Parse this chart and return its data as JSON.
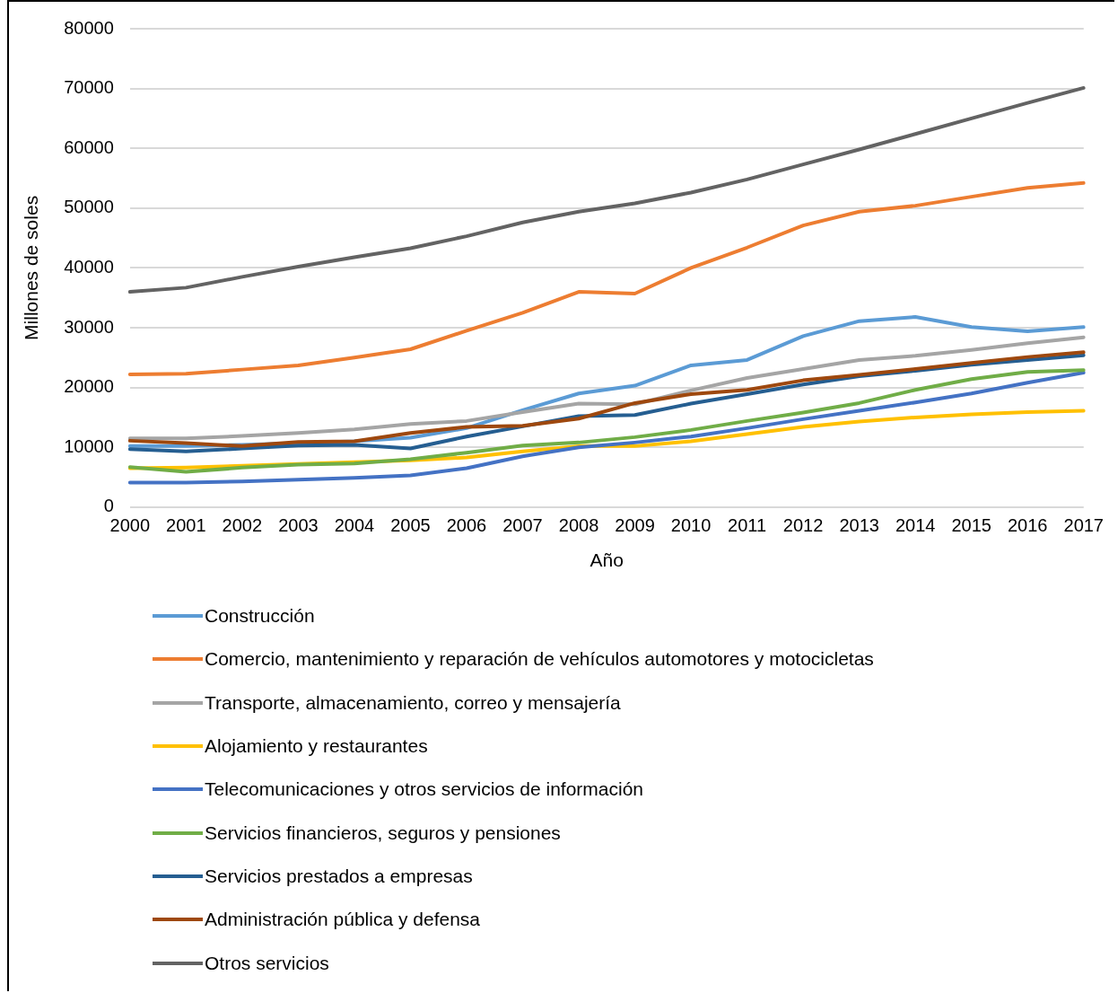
{
  "chart_data": {
    "type": "line",
    "xlabel": "Año",
    "ylabel": "Millones de soles",
    "categories": [
      "2000",
      "2001",
      "2002",
      "2003",
      "2004",
      "2005",
      "2006",
      "2007",
      "2008",
      "2009",
      "2010",
      "2011",
      "2012",
      "2013",
      "2014",
      "2015",
      "2016",
      "2017"
    ],
    "ylim": [
      0,
      80000
    ],
    "yticks": [
      0,
      10000,
      20000,
      30000,
      40000,
      50000,
      60000,
      70000,
      80000
    ],
    "grid": "y",
    "legend": "bottom",
    "marker": "none",
    "line_style": "solid",
    "series": [
      {
        "name": "Construcción",
        "color": "#5b9bd5",
        "values": [
          10200,
          10200,
          10400,
          10700,
          11000,
          11600,
          13200,
          16200,
          19000,
          20300,
          23700,
          24600,
          28600,
          31100,
          31800,
          30100,
          29400,
          30100
        ]
      },
      {
        "name": "Comercio, mantenimiento y reparación de vehículos automotores y motocicletas",
        "color": "#ed7d31",
        "values": [
          22200,
          22300,
          23000,
          23700,
          25000,
          26400,
          29500,
          32500,
          36000,
          35700,
          40000,
          43400,
          47100,
          49400,
          50400,
          51900,
          53400,
          54200
        ]
      },
      {
        "name": "Transporte, almacenamiento, correo y mensajería",
        "color": "#a5a5a5",
        "values": [
          11500,
          11500,
          11900,
          12400,
          13000,
          13900,
          14400,
          15900,
          17300,
          17200,
          19500,
          21600,
          23100,
          24600,
          25300,
          26300,
          27400,
          28400
        ]
      },
      {
        "name": "Alojamiento y restaurantes",
        "color": "#ffc000",
        "values": [
          6500,
          6600,
          6900,
          7200,
          7500,
          7800,
          8300,
          9300,
          10200,
          10200,
          11000,
          12200,
          13400,
          14300,
          15000,
          15500,
          15900,
          16100
        ]
      },
      {
        "name": "Telecomunicaciones y otros servicios de información",
        "color": "#4472c4",
        "values": [
          4100,
          4100,
          4300,
          4600,
          4900,
          5300,
          6500,
          8500,
          10000,
          10800,
          11800,
          13200,
          14700,
          16100,
          17500,
          19000,
          20800,
          22500
        ]
      },
      {
        "name": "Servicios financieros, seguros y pensiones",
        "color": "#70ad47",
        "values": [
          6700,
          5900,
          6600,
          7100,
          7300,
          8000,
          9100,
          10300,
          10800,
          11700,
          12900,
          14400,
          15800,
          17400,
          19600,
          21400,
          22600,
          22900
        ]
      },
      {
        "name": "Servicios prestados a empresas",
        "color": "#255e91",
        "values": [
          9700,
          9300,
          9800,
          10300,
          10400,
          9800,
          11800,
          13500,
          15200,
          15400,
          17300,
          18900,
          20500,
          21900,
          22800,
          23800,
          24600,
          25400
        ]
      },
      {
        "name": "Administración pública y defensa",
        "color": "#9e480e",
        "values": [
          11100,
          10700,
          10200,
          10900,
          11000,
          12400,
          13400,
          13600,
          14800,
          17400,
          18900,
          19600,
          21200,
          22100,
          23100,
          24100,
          25100,
          25900
        ]
      },
      {
        "name": "Otros servicios",
        "color": "#636363",
        "values": [
          36000,
          36700,
          38500,
          40200,
          41800,
          43300,
          45300,
          47600,
          49400,
          50800,
          52600,
          54800,
          57300,
          59800,
          62400,
          65000,
          67600,
          70100
        ]
      }
    ]
  }
}
